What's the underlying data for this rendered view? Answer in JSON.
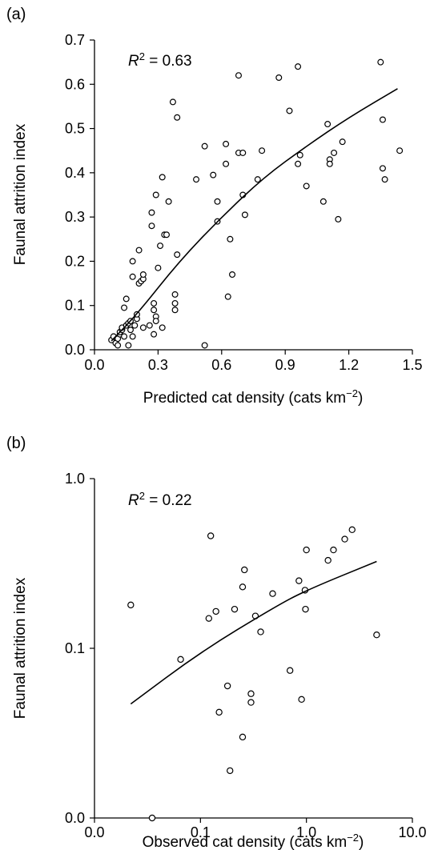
{
  "chart_data": [
    {
      "panel": "(a)",
      "type": "scatter",
      "xlabel": "Predicted cat density (cats km",
      "xlabel_sup": "−2",
      "xlabel_close": ")",
      "ylabel": "Faunal attrition index",
      "annotation": {
        "r": "R",
        "sup": "2",
        "rest": " = 0.63"
      },
      "xlim": [
        0,
        1.5
      ],
      "ylim": [
        0,
        0.7
      ],
      "x_ticks": [
        "0.0",
        "0.3",
        "0.6",
        "0.9",
        "1.2",
        "1.5"
      ],
      "y_ticks": [
        "0.0",
        "0.1",
        "0.2",
        "0.3",
        "0.4",
        "0.5",
        "0.6",
        "0.7"
      ],
      "x_scale": "linear",
      "y_scale": "linear",
      "grid": false,
      "points": [
        [
          0.08,
          0.022
        ],
        [
          0.09,
          0.03
        ],
        [
          0.1,
          0.015
        ],
        [
          0.11,
          0.025
        ],
        [
          0.11,
          0.01
        ],
        [
          0.12,
          0.035
        ],
        [
          0.12,
          0.04
        ],
        [
          0.13,
          0.045
        ],
        [
          0.13,
          0.05
        ],
        [
          0.14,
          0.03
        ],
        [
          0.14,
          0.095
        ],
        [
          0.15,
          0.115
        ],
        [
          0.15,
          0.055
        ],
        [
          0.16,
          0.01
        ],
        [
          0.16,
          0.06
        ],
        [
          0.17,
          0.045
        ],
        [
          0.17,
          0.065
        ],
        [
          0.18,
          0.03
        ],
        [
          0.18,
          0.2
        ],
        [
          0.18,
          0.165
        ],
        [
          0.19,
          0.055
        ],
        [
          0.2,
          0.07
        ],
        [
          0.2,
          0.08
        ],
        [
          0.21,
          0.15
        ],
        [
          0.21,
          0.225
        ],
        [
          0.22,
          0.155
        ],
        [
          0.23,
          0.16
        ],
        [
          0.23,
          0.17
        ],
        [
          0.23,
          0.05
        ],
        [
          0.26,
          0.055
        ],
        [
          0.27,
          0.31
        ],
        [
          0.27,
          0.28
        ],
        [
          0.28,
          0.09
        ],
        [
          0.28,
          0.035
        ],
        [
          0.28,
          0.105
        ],
        [
          0.29,
          0.075
        ],
        [
          0.29,
          0.065
        ],
        [
          0.29,
          0.35
        ],
        [
          0.3,
          0.185
        ],
        [
          0.31,
          0.235
        ],
        [
          0.32,
          0.39
        ],
        [
          0.32,
          0.05
        ],
        [
          0.33,
          0.26
        ],
        [
          0.34,
          0.26
        ],
        [
          0.35,
          0.335
        ],
        [
          0.37,
          0.56
        ],
        [
          0.38,
          0.09
        ],
        [
          0.38,
          0.125
        ],
        [
          0.38,
          0.105
        ],
        [
          0.39,
          0.525
        ],
        [
          0.39,
          0.215
        ],
        [
          0.48,
          0.385
        ],
        [
          0.52,
          0.46
        ],
        [
          0.52,
          0.01
        ],
        [
          0.56,
          0.395
        ],
        [
          0.58,
          0.29
        ],
        [
          0.58,
          0.335
        ],
        [
          0.62,
          0.465
        ],
        [
          0.62,
          0.42
        ],
        [
          0.63,
          0.12
        ],
        [
          0.64,
          0.25
        ],
        [
          0.65,
          0.17
        ],
        [
          0.68,
          0.62
        ],
        [
          0.68,
          0.445
        ],
        [
          0.7,
          0.445
        ],
        [
          0.7,
          0.35
        ],
        [
          0.71,
          0.305
        ],
        [
          0.77,
          0.385
        ],
        [
          0.79,
          0.45
        ],
        [
          0.87,
          0.615
        ],
        [
          0.92,
          0.54
        ],
        [
          0.96,
          0.64
        ],
        [
          0.96,
          0.42
        ],
        [
          0.97,
          0.44
        ],
        [
          1.0,
          0.37
        ],
        [
          1.08,
          0.335
        ],
        [
          1.1,
          0.51
        ],
        [
          1.11,
          0.43
        ],
        [
          1.11,
          0.42
        ],
        [
          1.13,
          0.445
        ],
        [
          1.15,
          0.295
        ],
        [
          1.17,
          0.47
        ],
        [
          1.35,
          0.65
        ],
        [
          1.36,
          0.52
        ],
        [
          1.36,
          0.41
        ],
        [
          1.37,
          0.385
        ],
        [
          1.44,
          0.45
        ]
      ],
      "fit_line": [
        [
          0.08,
          0.02
        ],
        [
          0.2,
          0.08
        ],
        [
          0.4,
          0.2
        ],
        [
          0.6,
          0.3
        ],
        [
          0.8,
          0.39
        ],
        [
          1.0,
          0.46
        ],
        [
          1.2,
          0.525
        ],
        [
          1.43,
          0.59
        ]
      ]
    },
    {
      "panel": "(b)",
      "type": "scatter",
      "xlabel": "Observed cat density (cats km",
      "xlabel_sup": "−2",
      "xlabel_close": ")",
      "ylabel": "Faunal attrition index",
      "annotation": {
        "r": "R",
        "sup": "2",
        "rest": " = 0.22"
      },
      "x_scale": "log",
      "y_scale": "log",
      "x_ticks": [
        "0.0",
        "0.1",
        "1.0",
        "10.0"
      ],
      "y_ticks": [
        "0.0",
        "0.1",
        "1.0"
      ],
      "grid": false,
      "points": [
        [
          0.022,
          0.18
        ],
        [
          0.035,
          0.01
        ],
        [
          0.065,
          0.086
        ],
        [
          0.12,
          0.15
        ],
        [
          0.125,
          0.46
        ],
        [
          0.14,
          0.165
        ],
        [
          0.15,
          0.042
        ],
        [
          0.18,
          0.06
        ],
        [
          0.19,
          0.019
        ],
        [
          0.21,
          0.17
        ],
        [
          0.25,
          0.03
        ],
        [
          0.25,
          0.23
        ],
        [
          0.26,
          0.29
        ],
        [
          0.3,
          0.054
        ],
        [
          0.3,
          0.048
        ],
        [
          0.33,
          0.155
        ],
        [
          0.37,
          0.125
        ],
        [
          0.48,
          0.21
        ],
        [
          0.7,
          0.074
        ],
        [
          0.85,
          0.25
        ],
        [
          0.9,
          0.05
        ],
        [
          0.97,
          0.22
        ],
        [
          0.98,
          0.17
        ],
        [
          1.0,
          0.38
        ],
        [
          1.6,
          0.33
        ],
        [
          1.8,
          0.38
        ],
        [
          2.3,
          0.44
        ],
        [
          2.7,
          0.5
        ],
        [
          4.6,
          0.12
        ]
      ],
      "fit_line": [
        [
          0.022,
          0.047
        ],
        [
          0.1,
          0.095
        ],
        [
          0.5,
          0.175
        ],
        [
          1.0,
          0.22
        ],
        [
          4.6,
          0.325
        ]
      ]
    }
  ]
}
